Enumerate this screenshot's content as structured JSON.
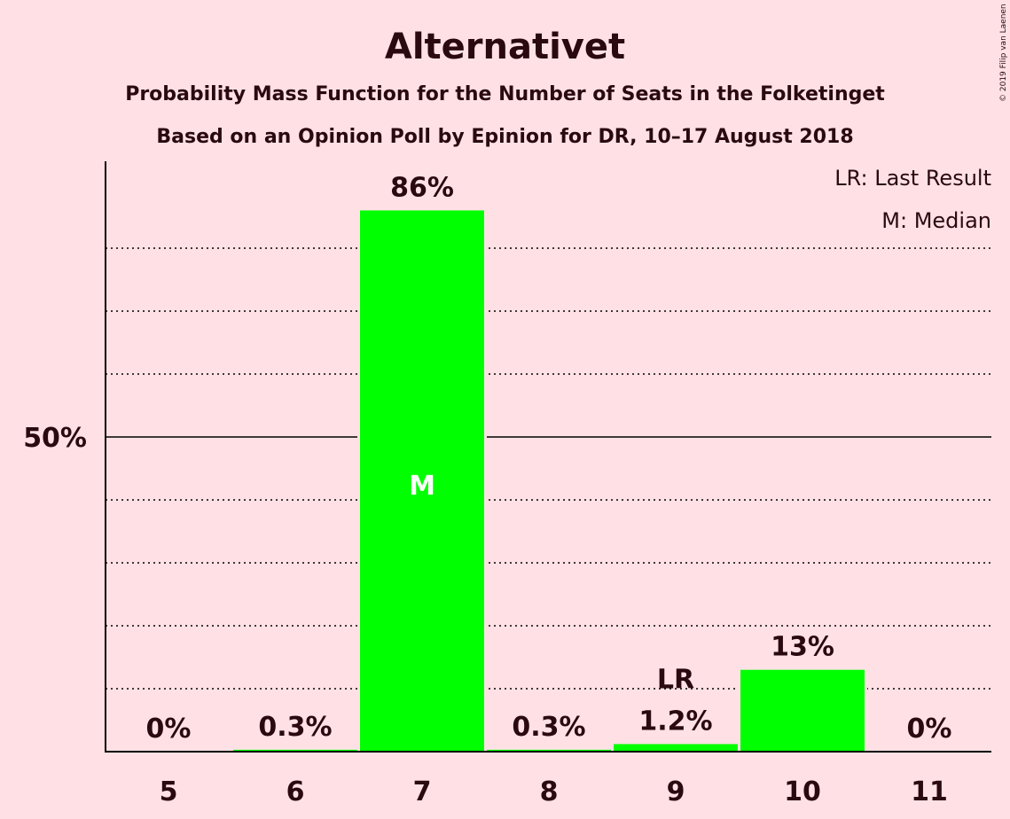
{
  "chart_data": {
    "type": "bar",
    "title": "Alternativet",
    "subtitle_1": "Probability Mass Function for the Number of Seats in the Folketinget",
    "subtitle_2": "Based on an Opinion Poll by Epinion for DR, 10–17 August 2018",
    "categories": [
      "5",
      "6",
      "7",
      "8",
      "9",
      "10",
      "11"
    ],
    "values": [
      0,
      0.3,
      86,
      0.3,
      1.2,
      13,
      0
    ],
    "value_labels": [
      "0%",
      "0.3%",
      "86%",
      "0.3%",
      "1.2%",
      "13%",
      "0%"
    ],
    "ylim": [
      0,
      94
    ],
    "y_tick_label": "50%",
    "y_tick_value": 50,
    "gridlines": [
      10,
      20,
      30,
      40,
      60,
      70,
      80
    ],
    "median_index": 2,
    "median_marker": "M",
    "last_result_index": 4,
    "last_result_marker": "LR",
    "legend": [
      "LR: Last Result",
      "M: Median"
    ],
    "legend_position": "top-right",
    "bar_color": "#00ff00",
    "background_color": "#ffe1e5",
    "copyright": "© 2019 Filip van Laenen"
  }
}
